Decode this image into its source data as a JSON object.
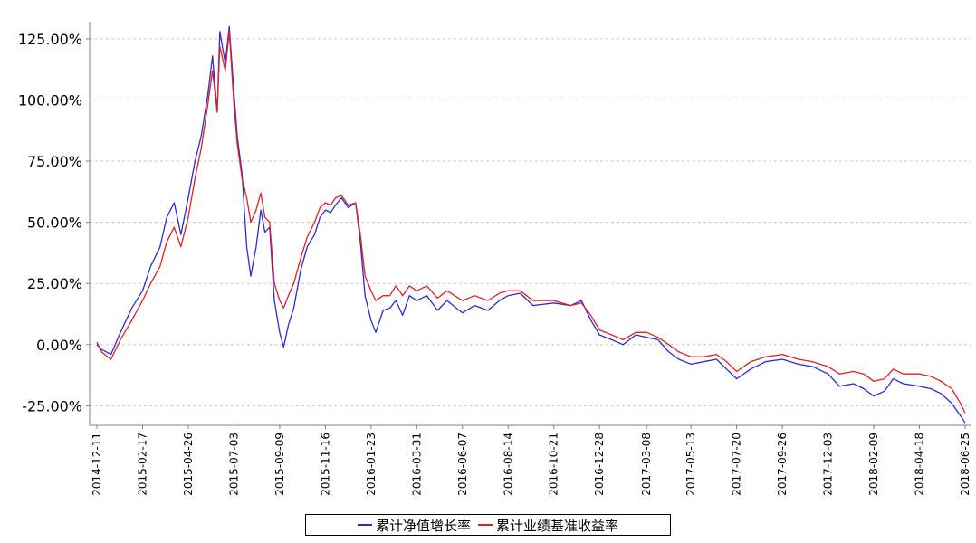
{
  "chart_data": {
    "type": "line",
    "title": "",
    "xlabel": "",
    "ylabel": "",
    "ylim": [
      -33,
      132
    ],
    "y_ticks": [
      125,
      100,
      75,
      50,
      25,
      0,
      -25
    ],
    "y_tick_labels": [
      "125.00%",
      "100.00%",
      "75.00%",
      "50.00%",
      "25.00%",
      "0.00%",
      "-25.00%"
    ],
    "x_tick_labels": [
      "2014-12-11",
      "2015-02-17",
      "2015-04-26",
      "2015-07-03",
      "2015-09-09",
      "2015-11-16",
      "2016-01-23",
      "2016-03-31",
      "2016-06-07",
      "2016-08-14",
      "2016-10-21",
      "2016-12-28",
      "2017-03-08",
      "2017-05-13",
      "2017-07-20",
      "2017-09-26",
      "2017-12-03",
      "2018-02-09",
      "2018-04-18",
      "2018-06-25"
    ],
    "grid": true,
    "legend_position": "bottom-center",
    "colors": {
      "series_1": "#2b2bd6",
      "series_2": "#e02020",
      "grid": "#c8c8c8"
    },
    "series": [
      {
        "name": "累计净值增长率",
        "x": [
          "2014-12-11",
          "2014-12-18",
          "2015-01-01",
          "2015-01-15",
          "2015-02-01",
          "2015-02-17",
          "2015-03-01",
          "2015-03-15",
          "2015-03-25",
          "2015-04-05",
          "2015-04-15",
          "2015-04-26",
          "2015-05-06",
          "2015-05-15",
          "2015-05-25",
          "2015-06-01",
          "2015-06-08",
          "2015-06-12",
          "2015-06-20",
          "2015-06-26",
          "2015-07-03",
          "2015-07-08",
          "2015-07-15",
          "2015-07-22",
          "2015-07-28",
          "2015-08-05",
          "2015-08-12",
          "2015-08-18",
          "2015-08-25",
          "2015-09-01",
          "2015-09-09",
          "2015-09-15",
          "2015-09-22",
          "2015-09-30",
          "2015-10-10",
          "2015-10-20",
          "2015-10-31",
          "2015-11-08",
          "2015-11-16",
          "2015-11-24",
          "2015-12-01",
          "2015-12-10",
          "2015-12-20",
          "2015-12-31",
          "2016-01-07",
          "2016-01-14",
          "2016-01-23",
          "2016-01-30",
          "2016-02-10",
          "2016-02-20",
          "2016-02-29",
          "2016-03-10",
          "2016-03-20",
          "2016-03-31",
          "2016-04-15",
          "2016-05-01",
          "2016-05-15",
          "2016-06-07",
          "2016-06-25",
          "2016-07-15",
          "2016-08-01",
          "2016-08-14",
          "2016-09-01",
          "2016-09-20",
          "2016-10-21",
          "2016-11-15",
          "2016-12-01",
          "2016-12-15",
          "2016-12-28",
          "2017-01-15",
          "2017-02-01",
          "2017-02-20",
          "2017-03-08",
          "2017-03-25",
          "2017-04-10",
          "2017-04-25",
          "2017-05-13",
          "2017-06-01",
          "2017-06-20",
          "2017-07-05",
          "2017-07-20",
          "2017-08-10",
          "2017-09-01",
          "2017-09-26",
          "2017-10-20",
          "2017-11-10",
          "2017-12-03",
          "2017-12-20",
          "2018-01-10",
          "2018-01-25",
          "2018-02-09",
          "2018-02-25",
          "2018-03-10",
          "2018-03-25",
          "2018-04-18",
          "2018-05-05",
          "2018-05-20",
          "2018-06-05",
          "2018-06-18",
          "2018-06-25"
        ],
        "values": [
          0,
          -2,
          -4,
          5,
          15,
          22,
          32,
          40,
          52,
          58,
          45,
          60,
          75,
          85,
          102,
          118,
          95,
          128,
          115,
          130,
          103,
          85,
          70,
          40,
          28,
          40,
          55,
          46,
          48,
          18,
          5,
          -1,
          8,
          15,
          30,
          40,
          45,
          52,
          55,
          54,
          57,
          60,
          56,
          58,
          42,
          20,
          10,
          5,
          14,
          15,
          18,
          12,
          20,
          18,
          20,
          14,
          18,
          13,
          16,
          14,
          18,
          20,
          21,
          16,
          17,
          16,
          18,
          10,
          4,
          2,
          0,
          4,
          3,
          2,
          -3,
          -6,
          -8,
          -7,
          -6,
          -10,
          -14,
          -10,
          -7,
          -6,
          -8,
          -9,
          -12,
          -17,
          -16,
          -18,
          -21,
          -19,
          -14,
          -16,
          -17,
          -18,
          -20,
          -24,
          -29,
          -32
        ]
      },
      {
        "name": "累计业绩基准收益率",
        "x": [
          "2014-12-11",
          "2014-12-18",
          "2015-01-01",
          "2015-01-15",
          "2015-02-01",
          "2015-02-17",
          "2015-03-01",
          "2015-03-15",
          "2015-03-25",
          "2015-04-05",
          "2015-04-15",
          "2015-04-26",
          "2015-05-06",
          "2015-05-15",
          "2015-05-25",
          "2015-06-01",
          "2015-06-08",
          "2015-06-12",
          "2015-06-20",
          "2015-06-26",
          "2015-07-03",
          "2015-07-08",
          "2015-07-15",
          "2015-07-22",
          "2015-07-28",
          "2015-08-05",
          "2015-08-12",
          "2015-08-18",
          "2015-08-25",
          "2015-09-01",
          "2015-09-09",
          "2015-09-15",
          "2015-09-22",
          "2015-09-30",
          "2015-10-10",
          "2015-10-20",
          "2015-10-31",
          "2015-11-08",
          "2015-11-16",
          "2015-11-24",
          "2015-12-01",
          "2015-12-10",
          "2015-12-20",
          "2015-12-31",
          "2016-01-07",
          "2016-01-14",
          "2016-01-23",
          "2016-01-30",
          "2016-02-10",
          "2016-02-20",
          "2016-02-29",
          "2016-03-10",
          "2016-03-20",
          "2016-03-31",
          "2016-04-15",
          "2016-05-01",
          "2016-05-15",
          "2016-06-07",
          "2016-06-25",
          "2016-07-15",
          "2016-08-01",
          "2016-08-14",
          "2016-09-01",
          "2016-09-20",
          "2016-10-21",
          "2016-11-15",
          "2016-12-01",
          "2016-12-15",
          "2016-12-28",
          "2017-01-15",
          "2017-02-01",
          "2017-02-20",
          "2017-03-08",
          "2017-03-25",
          "2017-04-10",
          "2017-04-25",
          "2017-05-13",
          "2017-06-01",
          "2017-06-20",
          "2017-07-05",
          "2017-07-20",
          "2017-08-10",
          "2017-09-01",
          "2017-09-26",
          "2017-10-20",
          "2017-11-10",
          "2017-12-03",
          "2017-12-20",
          "2018-01-10",
          "2018-01-25",
          "2018-02-09",
          "2018-02-25",
          "2018-03-10",
          "2018-03-25",
          "2018-04-18",
          "2018-05-05",
          "2018-05-20",
          "2018-06-05",
          "2018-06-18",
          "2018-06-25"
        ],
        "values": [
          1,
          -3,
          -6,
          2,
          10,
          18,
          25,
          32,
          42,
          48,
          40,
          52,
          68,
          80,
          98,
          112,
          95,
          122,
          112,
          128,
          98,
          82,
          68,
          60,
          50,
          55,
          62,
          52,
          50,
          25,
          18,
          15,
          20,
          25,
          35,
          44,
          50,
          56,
          58,
          57,
          60,
          61,
          57,
          58,
          45,
          28,
          22,
          18,
          20,
          20,
          24,
          20,
          24,
          22,
          24,
          19,
          22,
          18,
          20,
          18,
          21,
          22,
          22,
          18,
          18,
          16,
          17,
          12,
          6,
          4,
          2,
          5,
          5,
          3,
          0,
          -3,
          -5,
          -5,
          -4,
          -7,
          -11,
          -7,
          -5,
          -4,
          -6,
          -7,
          -9,
          -12,
          -11,
          -12,
          -15,
          -14,
          -10,
          -12,
          -12,
          -13,
          -15,
          -18,
          -24,
          -28
        ]
      }
    ]
  }
}
